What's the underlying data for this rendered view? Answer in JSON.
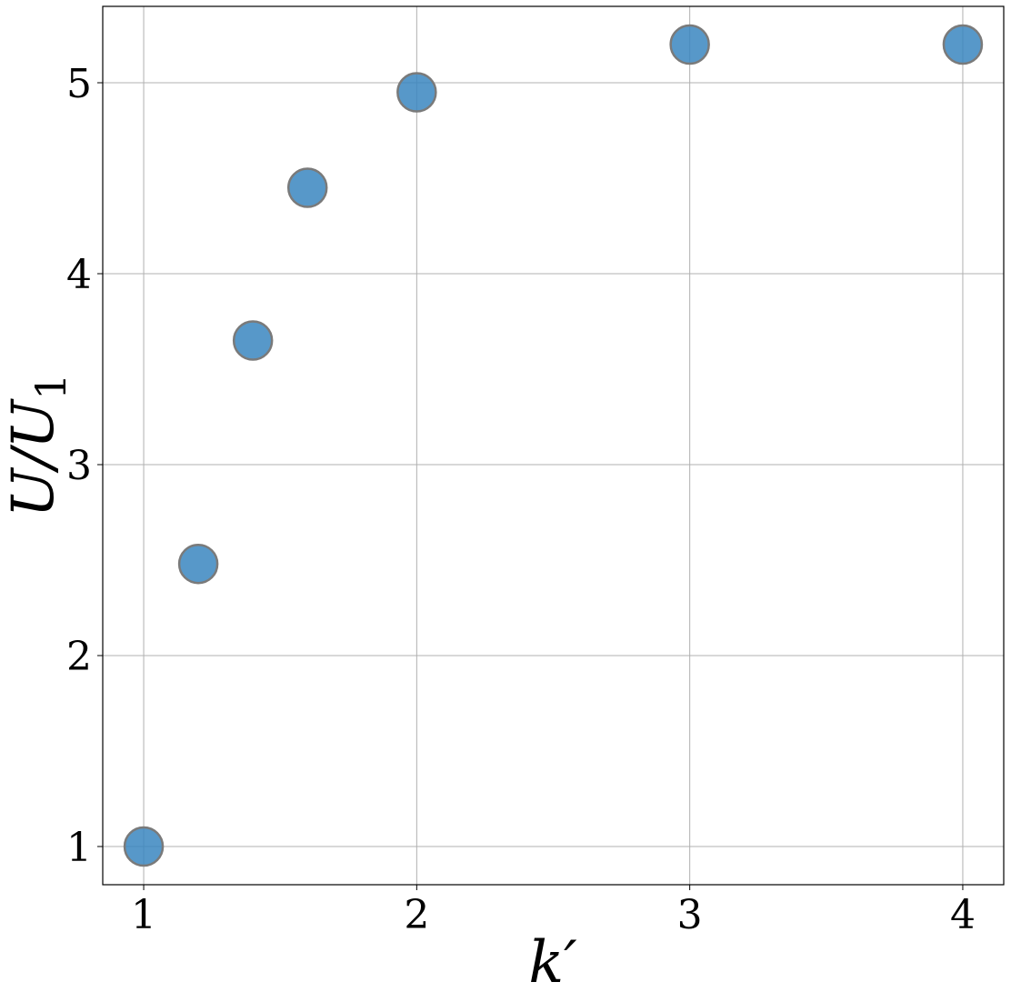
{
  "chart_data": {
    "type": "scatter",
    "title": "",
    "xlabel": "k′",
    "ylabel": {
      "main": "U/U",
      "subscript": "1"
    },
    "xlim": [
      0.85,
      4.15
    ],
    "ylim": [
      0.8,
      5.4
    ],
    "xticks": [
      1,
      2,
      3,
      4
    ],
    "xtick_labels": [
      "1",
      "2",
      "3",
      "4"
    ],
    "yticks": [
      1,
      2,
      3,
      4,
      5
    ],
    "ytick_labels": [
      "1",
      "2",
      "3",
      "4",
      "5"
    ],
    "grid": true,
    "legend": "none",
    "points": [
      {
        "x": 1.0,
        "y": 1.0
      },
      {
        "x": 1.2,
        "y": 2.48
      },
      {
        "x": 1.4,
        "y": 3.65
      },
      {
        "x": 1.6,
        "y": 4.45
      },
      {
        "x": 2.0,
        "y": 4.95
      },
      {
        "x": 3.0,
        "y": 5.2
      },
      {
        "x": 4.0,
        "y": 5.2
      }
    ],
    "colors": {
      "marker_fill": "#3a86c0",
      "marker_edge": "#7a7a7a",
      "grid": "#b0b0b0",
      "spine": "#000000"
    }
  }
}
